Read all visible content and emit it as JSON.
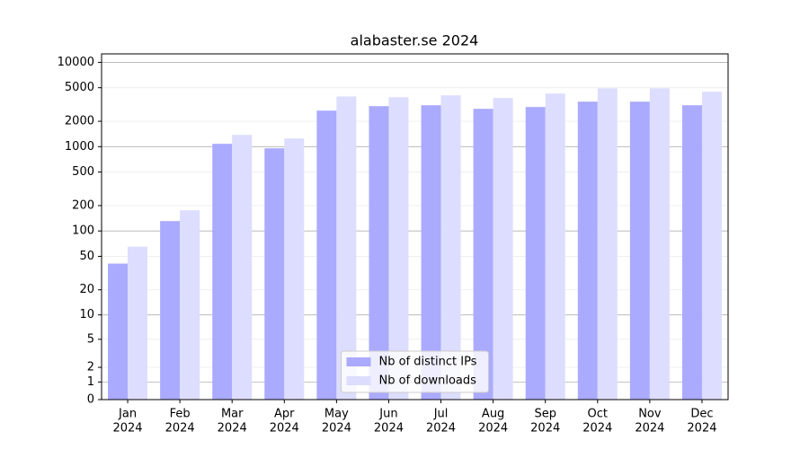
{
  "chart_data": {
    "type": "bar",
    "title": "alabaster.se 2024",
    "categories": [
      [
        "Jan",
        "2024"
      ],
      [
        "Feb",
        "2024"
      ],
      [
        "Mar",
        "2024"
      ],
      [
        "Apr",
        "2024"
      ],
      [
        "May",
        "2024"
      ],
      [
        "Jun",
        "2024"
      ],
      [
        "Jul",
        "2024"
      ],
      [
        "Aug",
        "2024"
      ],
      [
        "Sep",
        "2024"
      ],
      [
        "Oct",
        "2024"
      ],
      [
        "Nov",
        "2024"
      ],
      [
        "Dec",
        "2024"
      ]
    ],
    "series": [
      {
        "name": "Nb of distinct IPs",
        "color": "#aaaaff",
        "values": [
          41,
          131,
          1080,
          956,
          2674,
          3024,
          3100,
          2810,
          2950,
          3418,
          3418,
          3100
        ]
      },
      {
        "name": "Nb of downloads",
        "color": "#ddddff",
        "values": [
          65,
          176,
          1380,
          1250,
          3940,
          3860,
          4060,
          3780,
          4260,
          4920,
          4920,
          4480
        ]
      }
    ],
    "yscale": "asinh",
    "ylim": [
      0,
      12600
    ],
    "yticks": [
      0,
      1,
      2,
      5,
      10,
      20,
      50,
      100,
      200,
      500,
      1000,
      2000,
      5000,
      10000
    ],
    "grid": true,
    "legend": "lower center"
  }
}
